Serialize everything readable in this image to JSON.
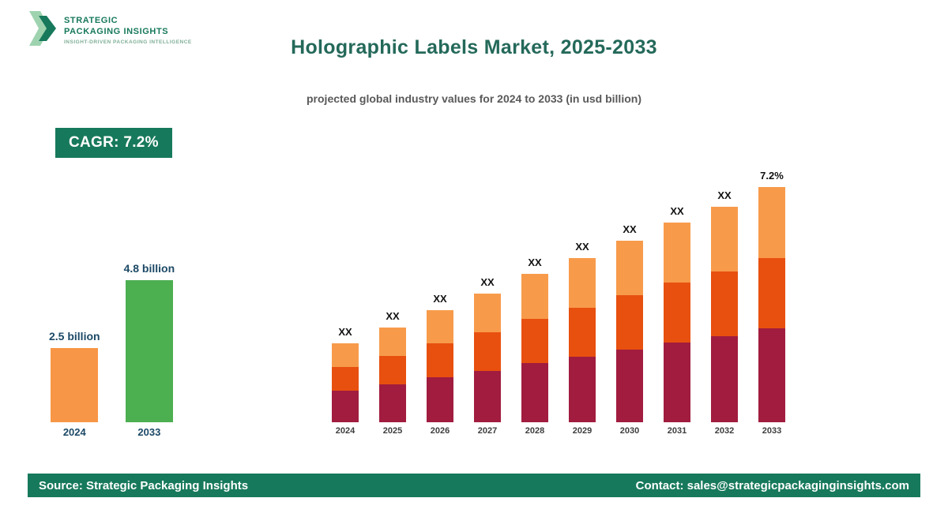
{
  "logo": {
    "line1": "STRATEGIC",
    "line2": "PACKAGING INSIGHTS",
    "tagline": "INSIGHT-DRIVEN PACKAGING INTELLIGENCE"
  },
  "header": {
    "title": "Holographic Labels Market, 2025-2033",
    "subtitle": "projected global industry values for 2024 to 2033 (in usd billion)"
  },
  "cagr_badge": "CAGR: 7.2%",
  "colors": {
    "brand_green": "#17795B",
    "title_teal": "#24695A",
    "summary_orange": "#F79646",
    "summary_green": "#4CAF50",
    "stack_bottom_crimson": "#A11C3F",
    "stack_middle_orangered": "#E8500F",
    "stack_top_lightorange": "#F79B4B"
  },
  "chart_data": [
    {
      "type": "bar",
      "name": "summary-comparison",
      "title": "",
      "categories": [
        "2024",
        "2033"
      ],
      "values": [
        2.5,
        4.8
      ],
      "value_labels": [
        "2.5 billion",
        "4.8 billion"
      ],
      "bar_colors": [
        "#F79646",
        "#4CAF50"
      ],
      "unit": "usd billion",
      "grid": false,
      "axes_hidden": true
    },
    {
      "type": "bar",
      "subtype": "stacked",
      "name": "yearly-projection",
      "title": "",
      "xlabel": "",
      "ylabel": "",
      "categories": [
        "2024",
        "2025",
        "2026",
        "2027",
        "2028",
        "2029",
        "2030",
        "2031",
        "2032",
        "2033"
      ],
      "series": [
        {
          "name": "segment-bottom",
          "color": "#A11C3F",
          "values": [
            40,
            48,
            57,
            65,
            75,
            83,
            92,
            101,
            109,
            119
          ]
        },
        {
          "name": "segment-middle",
          "color": "#E8500F",
          "values": [
            30,
            36,
            43,
            49,
            56,
            62,
            69,
            76,
            82,
            89
          ]
        },
        {
          "name": "segment-top",
          "color": "#F79B4B",
          "values": [
            30,
            36,
            42,
            49,
            57,
            63,
            69,
            76,
            82,
            90
          ]
        }
      ],
      "totals_relative": [
        100,
        120,
        142,
        163,
        188,
        208,
        230,
        253,
        273,
        298
      ],
      "bar_labels": [
        "XX",
        "XX",
        "XX",
        "XX",
        "XX",
        "XX",
        "XX",
        "XX",
        "XX",
        "7.2%"
      ],
      "values_masked": true,
      "grid": false,
      "axes_hidden": true,
      "legend": "none"
    }
  ],
  "footer": {
    "source": "Source: Strategic Packaging Insights",
    "contact": "Contact: sales@strategicpackaginginsights.com"
  }
}
